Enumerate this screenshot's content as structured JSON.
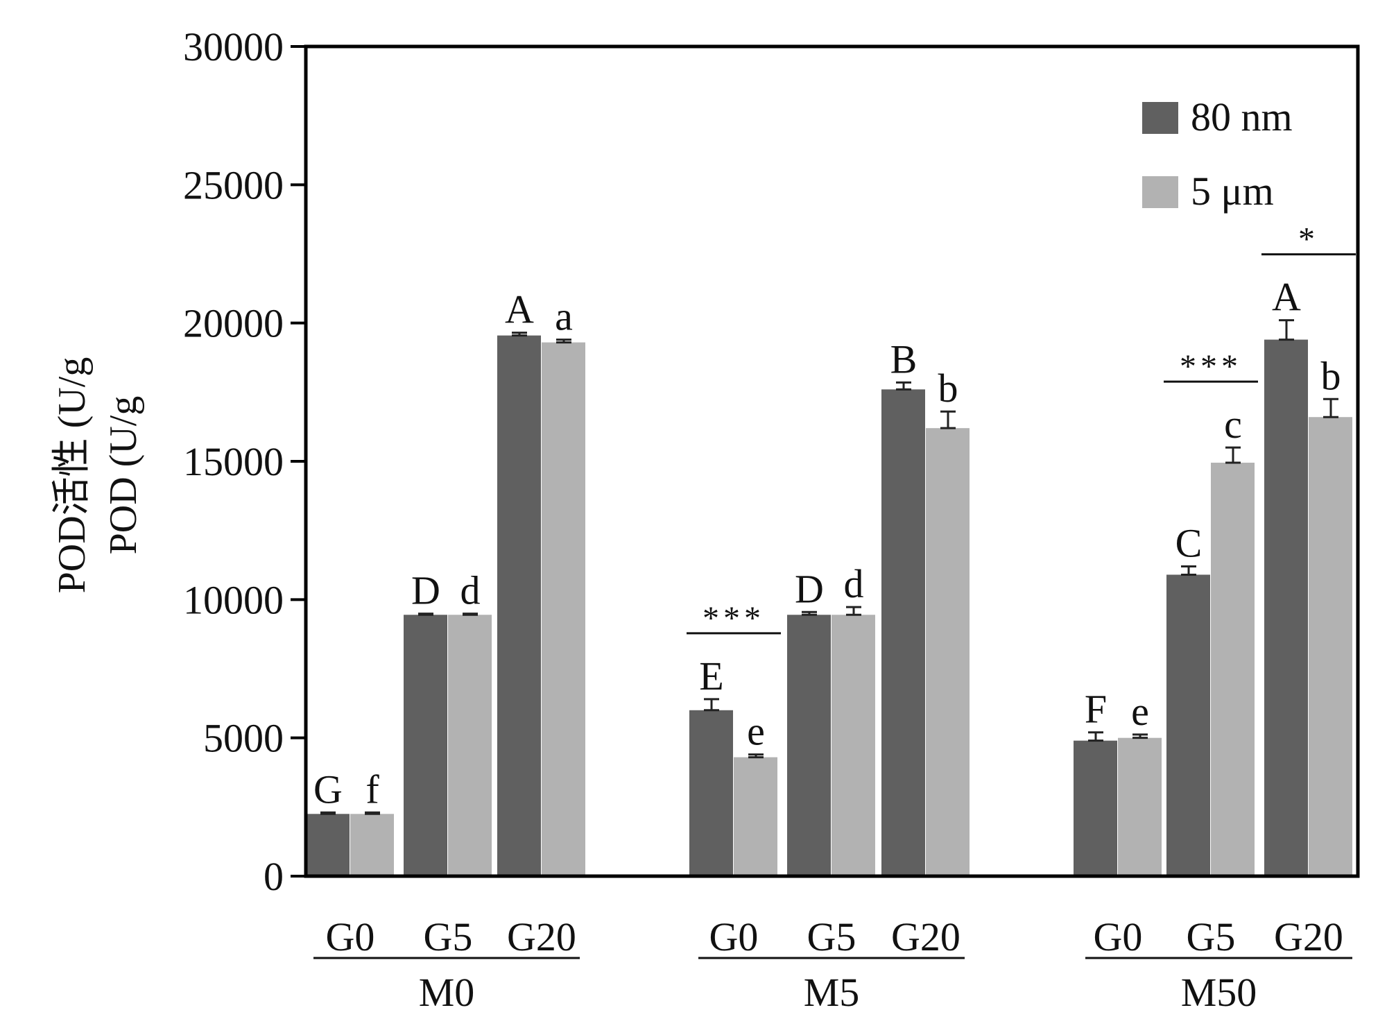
{
  "chart_data": {
    "type": "bar",
    "ylabel_lines": [
      "POD活性 (U/g",
      "POD (U/g"
    ],
    "ylim": [
      0,
      30000
    ],
    "yticks": [
      0,
      5000,
      10000,
      15000,
      20000,
      25000,
      30000
    ],
    "ytick_labels": [
      "0",
      "5000",
      "10000",
      "15000",
      "20000",
      "25000",
      "30000"
    ],
    "legend_position": "top-right",
    "grid": false,
    "series": [
      {
        "name": "80 nm",
        "color": "#606060"
      },
      {
        "name": "5 μm",
        "color": "#b2b2b2"
      }
    ],
    "groups": [
      {
        "label": "M0",
        "categories": [
          {
            "label": "G0",
            "values": [
              2250,
              2250
            ],
            "errors": [
              50,
              50
            ],
            "letters": [
              "G",
              "f"
            ]
          },
          {
            "label": "G5",
            "values": [
              9450,
              9450
            ],
            "errors": [
              40,
              40
            ],
            "letters": [
              "D",
              "d"
            ]
          },
          {
            "label": "G20",
            "values": [
              19550,
              19300
            ],
            "errors": [
              100,
              100
            ],
            "letters": [
              "A",
              "a"
            ]
          }
        ],
        "significance": []
      },
      {
        "label": "M5",
        "categories": [
          {
            "label": "G0",
            "values": [
              6000,
              4300
            ],
            "errors": [
              400,
              100
            ],
            "letters": [
              "E",
              "e"
            ]
          },
          {
            "label": "G5",
            "values": [
              9450,
              9450
            ],
            "errors": [
              100,
              280
            ],
            "letters": [
              "D",
              "d"
            ]
          },
          {
            "label": "G20",
            "values": [
              17600,
              16200
            ],
            "errors": [
              250,
              600
            ],
            "letters": [
              "B",
              "b"
            ]
          }
        ],
        "significance": [
          {
            "category": "G0",
            "stars": "***"
          }
        ]
      },
      {
        "label": "M50",
        "categories": [
          {
            "label": "G0",
            "values": [
              4900,
              5000
            ],
            "errors": [
              300,
              120
            ],
            "letters": [
              "F",
              "e"
            ]
          },
          {
            "label": "G5",
            "values": [
              10900,
              14950
            ],
            "errors": [
              300,
              550
            ],
            "letters": [
              "C",
              "c"
            ]
          },
          {
            "label": "G20",
            "values": [
              19400,
              16600
            ],
            "errors": [
              700,
              650
            ],
            "letters": [
              "A",
              "b"
            ]
          }
        ],
        "significance": [
          {
            "category": "G5",
            "stars": "***"
          },
          {
            "category": "G20",
            "stars": "*"
          }
        ]
      }
    ]
  }
}
